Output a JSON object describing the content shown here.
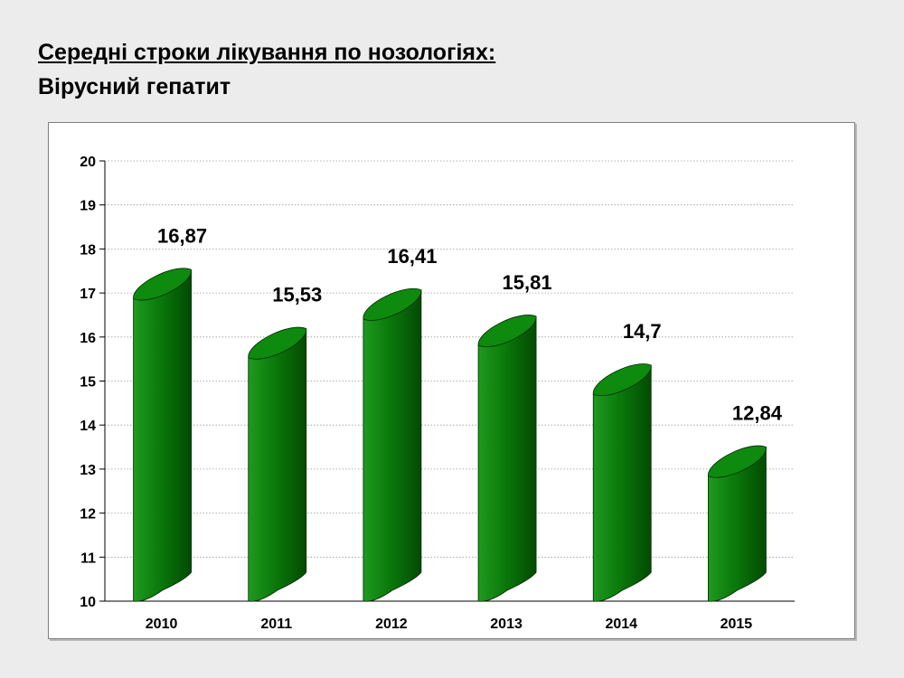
{
  "slide": {
    "title": "Середні строки лікування по нозологіях:",
    "subtitle": "Вірусний гепатит"
  },
  "chart_data": {
    "type": "bar",
    "title": "",
    "xlabel": "",
    "ylabel": "",
    "categories": [
      "2010",
      "2011",
      "2012",
      "2013",
      "2014",
      "2015"
    ],
    "values": [
      16.87,
      15.53,
      16.41,
      15.81,
      14.7,
      12.84
    ],
    "value_labels": [
      "16,87",
      "15,53",
      "16,41",
      "15,81",
      "14,7",
      "12,84"
    ],
    "ylim": [
      10,
      20
    ],
    "yticks": [
      10,
      11,
      12,
      13,
      14,
      15,
      16,
      17,
      18,
      19,
      20
    ],
    "grid": true,
    "bar_shape": "3d-cylinder",
    "colors": {
      "bar_light": "#1f9a1f",
      "bar_mid": "#0a7a0a",
      "bar_dark": "#034a03",
      "bar_top": "#0e8a0e"
    }
  }
}
